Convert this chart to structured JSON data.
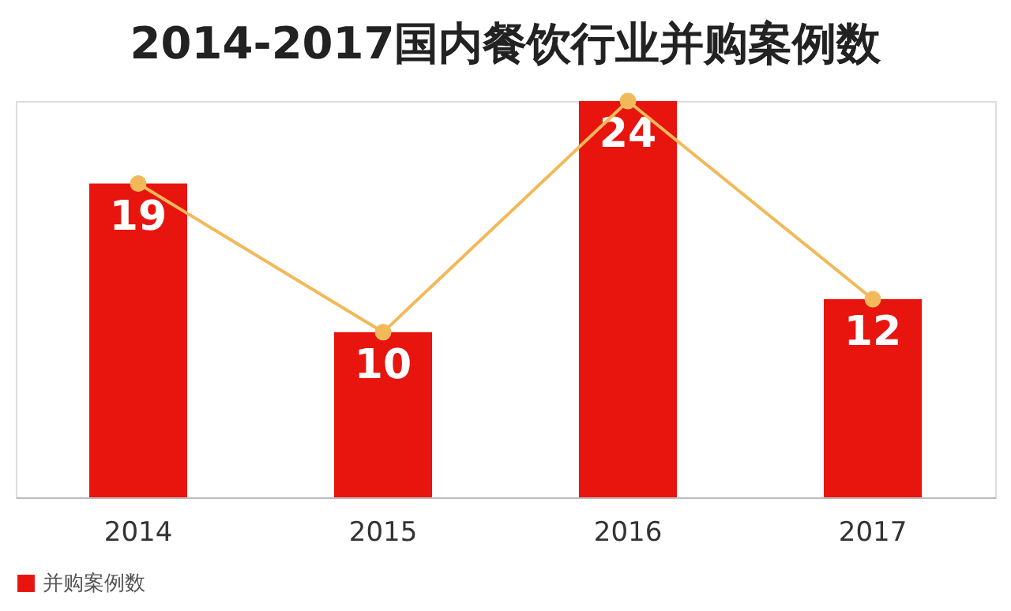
{
  "chart_data": {
    "type": "bar",
    "title": "2014-2017国内餐饮行业并购案例数",
    "categories": [
      "2014",
      "2015",
      "2016",
      "2017"
    ],
    "series": [
      {
        "name": "并购案例数",
        "color": "#e8140e",
        "values": [
          19,
          10,
          24,
          12
        ],
        "value_labels": [
          "19",
          "10",
          "24",
          "12"
        ]
      },
      {
        "type": "line",
        "color": "#f2b95a",
        "values": [
          19,
          10,
          24,
          12
        ]
      }
    ],
    "legend": "bottom",
    "marker": "circle"
  }
}
